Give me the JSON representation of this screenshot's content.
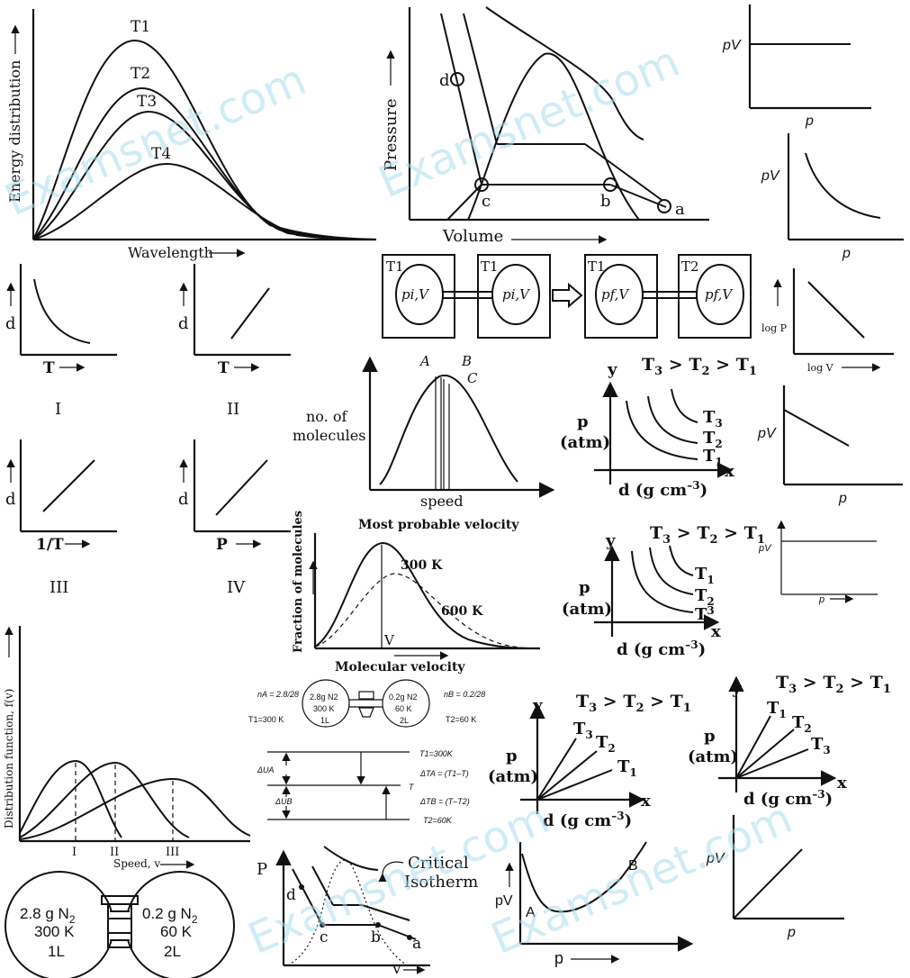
{
  "watermark": "Examsnet.com",
  "energy_plot": {
    "ylabel": "Energy distribution",
    "xlabel": "Wavelength",
    "curves": [
      "T1",
      "T2",
      "T3",
      "T4"
    ]
  },
  "pv_diagram_top": {
    "ylabel": "Pressure",
    "xlabel": "Volume",
    "points": [
      "d",
      "c",
      "b",
      "a"
    ]
  },
  "pv_p_plots": {
    "ylabel": "pV",
    "xlabel": "p",
    "log_ylabel": "log P",
    "log_xlabel": "log V"
  },
  "expansion_boxes": {
    "temps": [
      "T1",
      "T1",
      "T1",
      "T2"
    ],
    "states": [
      "pi,V",
      "pi,V",
      "pf,V",
      "pf,V"
    ]
  },
  "density_plots": {
    "ylabel": "d",
    "xlabels": [
      "T",
      "T",
      "1/T",
      "P"
    ],
    "numerals": [
      "I",
      "II",
      "III",
      "IV"
    ]
  },
  "speed_distribution": {
    "ylabel": "no. of molecules",
    "xlabel": "speed",
    "marks": [
      "A",
      "B",
      "C"
    ]
  },
  "isotherm_plots": {
    "order_label": "T3 > T2 > T1",
    "yaxis": "y",
    "xaxis": "x",
    "ylabel_top": "p",
    "ylabel_bottom": "(atm)",
    "xlabel": "d (g cm-3)"
  },
  "maxwell_plot": {
    "title": "Most probable velocity",
    "ylabel": "Fraction of molecules",
    "xlabel": "Molecular velocity",
    "curve1": "300 K",
    "curve2": "600 K",
    "v_mark": "V"
  },
  "bulbs_small": {
    "na": "nA = 2.8/28",
    "nb": "nB = 0.2/28",
    "t1": "T1=300 K",
    "t2": "T2=60 K",
    "left_bulb": [
      "2.8g N2",
      "300 K",
      "1L"
    ],
    "right_bulb": [
      "0.2g N2",
      "60 K",
      "2L"
    ]
  },
  "energy_levels": {
    "levels": [
      "T1=300K",
      "T",
      "T2=60K"
    ],
    "du": [
      "ΔUA",
      "ΔUB"
    ],
    "dt": [
      "ΔTA = (T1–T)",
      "ΔTB = (T–T2)"
    ]
  },
  "dist_function_plot": {
    "ylabel": "Distribution function, f(v)",
    "xlabel": "Speed, v",
    "peaks": [
      "I",
      "II",
      "III"
    ]
  },
  "bulbs_large": {
    "left": [
      "2.8 g N2",
      "300 K",
      "1L"
    ],
    "right": [
      "0.2 g N2",
      "60 K",
      "2L"
    ]
  },
  "critical_plot": {
    "ylabel": "P",
    "xlabel": "v",
    "label": "Critical Isotherm",
    "points": [
      "d",
      "c",
      "b",
      "a"
    ]
  },
  "pv_curve_plot": {
    "ylabel": "pV",
    "xlabel": "p",
    "points": [
      "A",
      "B"
    ]
  }
}
